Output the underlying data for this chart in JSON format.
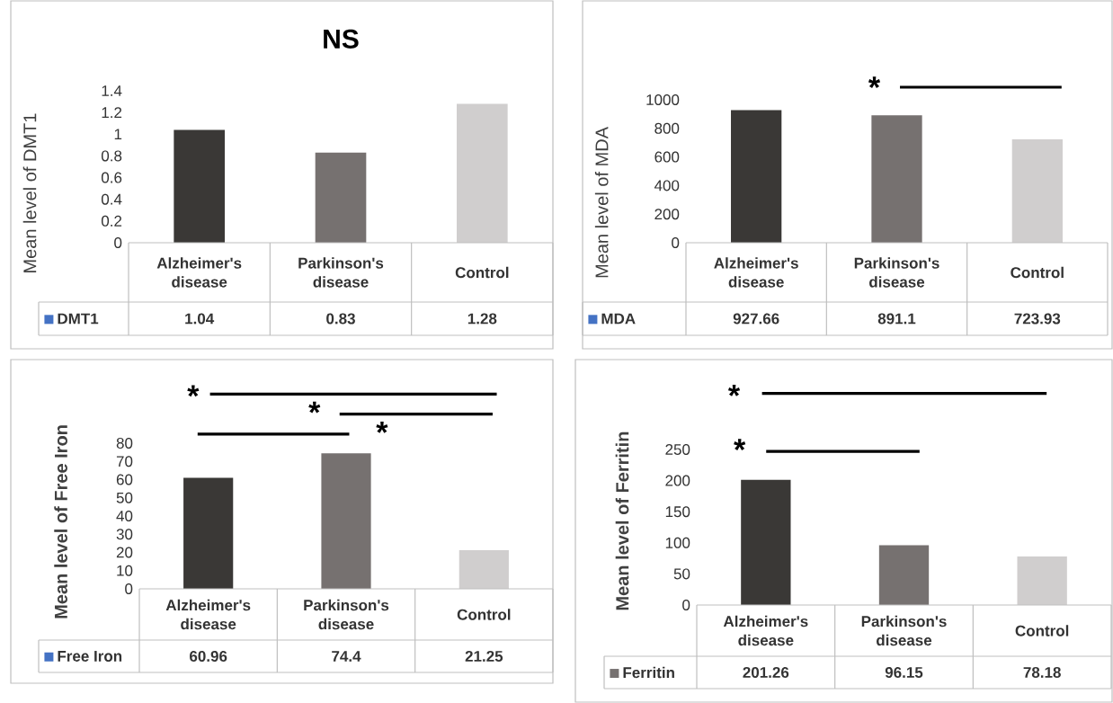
{
  "chart_data": [
    {
      "type": "bar",
      "title": "NS",
      "ylabel": "Mean level of DMT1",
      "categories": [
        "Alzheimer's disease",
        "Parkinson's disease",
        "Control"
      ],
      "series": [
        {
          "name": "DMT1",
          "color": "#4472c4",
          "colors": [
            "#3a3836",
            "#767170",
            "#d0cece"
          ],
          "values": [
            1.04,
            0.83,
            1.28
          ]
        }
      ],
      "ylim": [
        0,
        1.4
      ],
      "yticks": [
        0,
        0.2,
        0.4,
        0.6,
        0.8,
        1,
        1.2,
        1.4
      ],
      "data_labels": true,
      "legend": "bottom"
    },
    {
      "type": "bar",
      "ylabel": "Mean level of MDA",
      "categories": [
        "Alzheimer's disease",
        "Parkinson's disease",
        "Control"
      ],
      "series": [
        {
          "name": "MDA",
          "color": "#4472c4",
          "colors": [
            "#3a3836",
            "#767170",
            "#d0cece"
          ],
          "values": [
            927.66,
            891.1,
            723.93
          ]
        }
      ],
      "ylim": [
        0,
        1000
      ],
      "yticks": [
        0,
        200,
        400,
        600,
        800,
        1000
      ],
      "data_labels": true,
      "legend": "bottom",
      "annotations": [
        "*"
      ]
    },
    {
      "type": "bar",
      "ylabel": "Mean level of Free Iron",
      "categories": [
        "Alzheimer's disease",
        "Parkinson's disease",
        "Control"
      ],
      "series": [
        {
          "name": "Free Iron",
          "color": "#4472c4",
          "colors": [
            "#3a3836",
            "#767170",
            "#d0cece"
          ],
          "values": [
            60.96,
            74.4,
            21.25
          ]
        }
      ],
      "ylim": [
        0,
        80
      ],
      "yticks": [
        0,
        10,
        20,
        30,
        40,
        50,
        60,
        70,
        80
      ],
      "data_labels": true,
      "legend": "bottom",
      "annotations": [
        "*",
        "*",
        "*"
      ]
    },
    {
      "type": "bar",
      "ylabel": "Mean level of Ferritin",
      "categories": [
        "Alzheimer's disease",
        "Parkinson's disease",
        "Control"
      ],
      "series": [
        {
          "name": "Ferritin",
          "color": "#767170",
          "colors": [
            "#3a3836",
            "#767170",
            "#d0cece"
          ],
          "values": [
            201.26,
            96.15,
            78.18
          ]
        }
      ],
      "ylim": [
        0,
        250
      ],
      "yticks": [
        0,
        50,
        100,
        150,
        200,
        250
      ],
      "data_labels": true,
      "legend": "bottom",
      "annotations": [
        "*",
        "*"
      ]
    }
  ]
}
